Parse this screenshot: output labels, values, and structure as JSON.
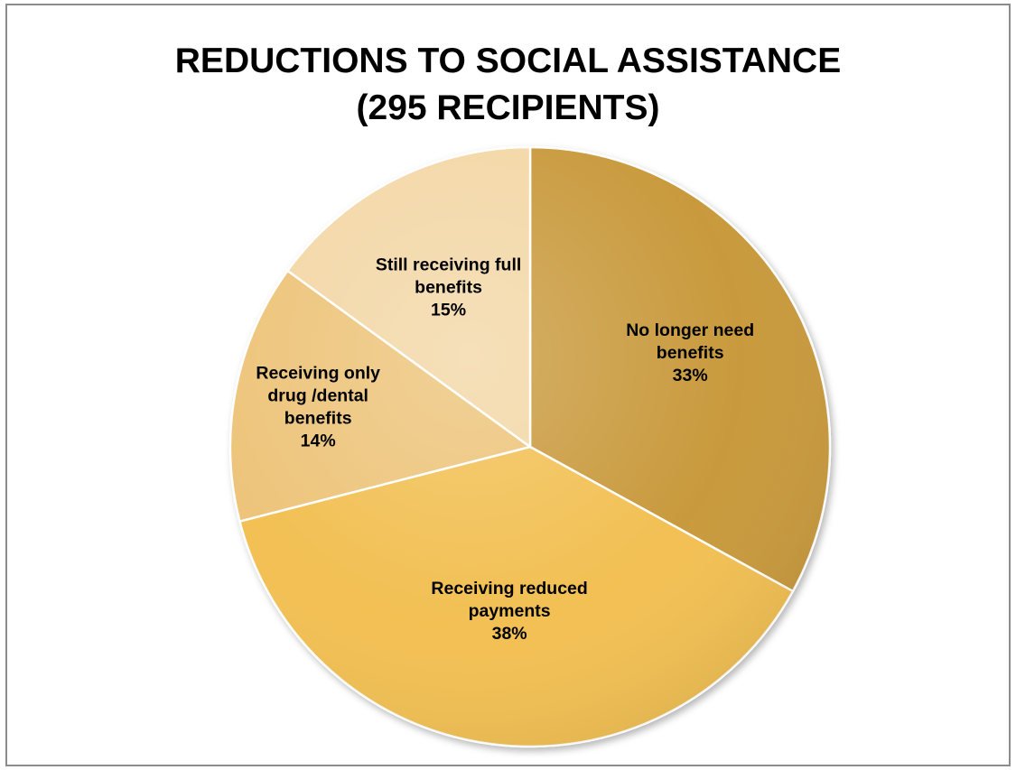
{
  "chart_data": {
    "type": "pie",
    "title_lines": [
      "REDUCTIONS TO SOCIAL ASSISTANCE",
      "(295 RECIPIENTS)"
    ],
    "start_angle_deg": 0,
    "direction": "clockwise",
    "slices": [
      {
        "label_lines": [
          "No longer need",
          "benefits",
          "33%"
        ],
        "value": 33,
        "color": "#c99a3c"
      },
      {
        "label_lines": [
          "Receiving reduced",
          "payments",
          "38%"
        ],
        "value": 38,
        "color": "#f2c052"
      },
      {
        "label_lines": [
          "Receiving  only",
          "drug /dental",
          "benefits",
          "14%"
        ],
        "value": 14,
        "color": "#edc47a"
      },
      {
        "label_lines": [
          "Still receiving full",
          "benefits",
          "15%"
        ],
        "value": 15,
        "color": "#f3d7a6"
      }
    ],
    "legend": "none",
    "data_labels": "inside"
  }
}
